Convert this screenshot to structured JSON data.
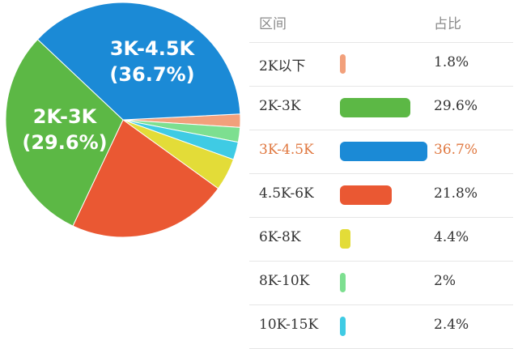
{
  "chart_data": {
    "type": "pie",
    "title": "",
    "slices": [
      {
        "label": "2K以下",
        "value": 1.8,
        "pct_text": "1.8%",
        "color": "#f2a07b"
      },
      {
        "label": "2K-3K",
        "value": 29.6,
        "pct_text": "29.6%",
        "color": "#5cb845"
      },
      {
        "label": "3K-4.5K",
        "value": 36.7,
        "pct_text": "36.7%",
        "color": "#1b8ad6"
      },
      {
        "label": "4.5K-6K",
        "value": 21.8,
        "pct_text": "21.8%",
        "color": "#ea5833"
      },
      {
        "label": "6K-8K",
        "value": 4.4,
        "pct_text": "4.4%",
        "color": "#e3dc38"
      },
      {
        "label": "8K-10K",
        "value": 2,
        "pct_text": "2%",
        "color": "#7ddf90"
      },
      {
        "label": "10K-15K",
        "value": 2.4,
        "pct_text": "2.4%",
        "color": "#3fcbe4"
      }
    ],
    "pie_labels": [
      {
        "name": "3K-4.5K",
        "line1": "3K-4.5K",
        "line2": "(36.7%)"
      },
      {
        "name": "2K-3K",
        "line1": "2K-3K",
        "line2": "(29.6%)"
      }
    ],
    "highlighted_slice": "3K-4.5K",
    "highlight_color": "#e07840"
  },
  "table": {
    "header_range": "区间",
    "header_ratio": "占比"
  }
}
